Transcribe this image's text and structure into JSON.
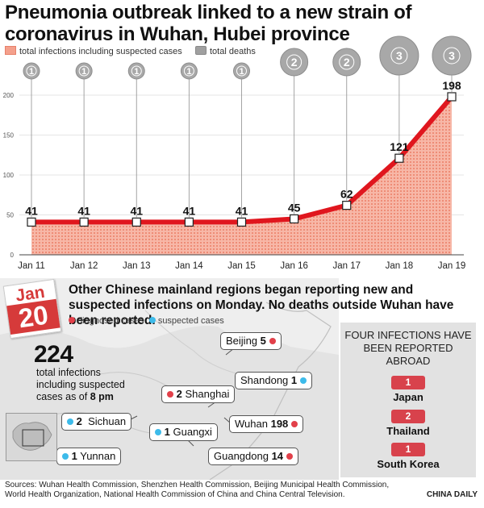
{
  "title": "Pneumonia outbreak linked to a new strain of coronavirus in Wuhan, Hubei province",
  "legend": {
    "infections": "total infections including suspected cases",
    "deaths": "total deaths"
  },
  "colors": {
    "area_fill": "#f6b1a1",
    "area_hatch": "#ef8f79",
    "line": "#e0161e",
    "death_circle": "#a8a8a8",
    "diagnosed_dot": "#e2404a",
    "suspected_dot": "#3dbbea",
    "badge": "#d8424c",
    "panel_bg": "#e2e2e2"
  },
  "chart_data": {
    "type": "area",
    "title": "Pneumonia outbreak linked to a new strain of coronavirus in Wuhan, Hubei province",
    "categories": [
      "Jan 11",
      "Jan 12",
      "Jan 13",
      "Jan 14",
      "Jan 15",
      "Jan 16",
      "Jan 17",
      "Jan 18",
      "Jan 19"
    ],
    "series": [
      {
        "name": "total infections including suspected cases",
        "values": [
          41,
          41,
          41,
          41,
          41,
          45,
          62,
          121,
          198
        ]
      },
      {
        "name": "total deaths",
        "values": [
          1,
          1,
          1,
          1,
          1,
          2,
          2,
          3,
          3
        ]
      }
    ],
    "yticks": [
      0,
      50,
      100,
      150,
      200
    ],
    "ylim": [
      0,
      200
    ],
    "xlabel": "",
    "ylabel": ""
  },
  "infographic": {
    "date_month": "Jan",
    "date_day": "20",
    "headline": "Other Chinese mainland regions began reporting new and suspected infections on Monday. No deaths outside Wuhan have been reported.",
    "key_diagnosed": "diagnosed cases",
    "key_suspected": "suspected cases",
    "total": "224",
    "total_text": "total infections including suspected cases as of",
    "total_time": "8 pm",
    "regions": {
      "beijing": {
        "name": "Beijing",
        "count": "5"
      },
      "shandong": {
        "name": "Shandong",
        "count": "1"
      },
      "shanghai": {
        "name": "Shanghai",
        "count": "2"
      },
      "sichuan": {
        "name": "Sichuan",
        "count": "2"
      },
      "guangxi": {
        "name": "Guangxi",
        "count": "1"
      },
      "wuhan": {
        "name": "Wuhan",
        "count": "198"
      },
      "yunnan": {
        "name": "Yunnan",
        "count": "1"
      },
      "guangdong": {
        "name": "Guangdong",
        "count": "14"
      }
    },
    "abroad_title": "FOUR INFECTIONS HAVE BEEN REPORTED ABROAD",
    "abroad": [
      {
        "count": "1",
        "country": "Japan"
      },
      {
        "count": "2",
        "country": "Thailand"
      },
      {
        "count": "1",
        "country": "South Korea"
      }
    ]
  },
  "sources": "Sources: Wuhan Health Commission, Shenzhen Health Commission, Beijing Municipal Health Commission, World Health Organization, National Health Commission of China and China Central Television.",
  "credit": "CHINA DAILY"
}
